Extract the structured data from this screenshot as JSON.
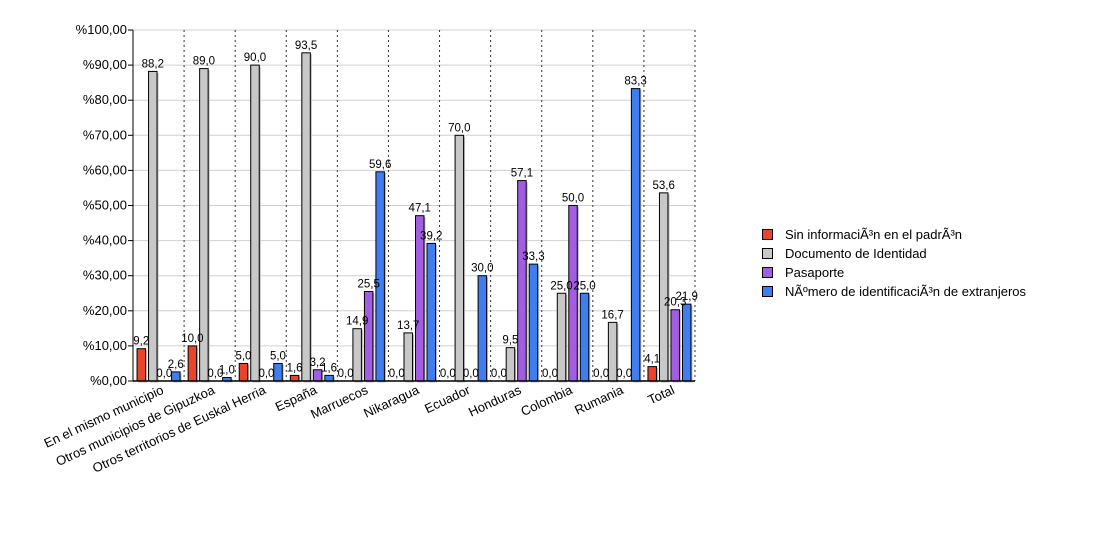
{
  "chart_data": {
    "type": "bar",
    "categories": [
      "En el mismo municipio",
      "Otros municipios de Gipuzkoa",
      "Otros territorios de Euskal Herria",
      "España",
      "Marruecos",
      "Nikaragua",
      "Ecuador",
      "Honduras",
      "Colombia",
      "Rumania",
      "Total"
    ],
    "series": [
      {
        "name": "Sin informaciÃ³n en el padrÃ³n",
        "color": "#e8452c",
        "values": [
          9.2,
          10.0,
          5.0,
          1.6,
          0.0,
          0.0,
          0.0,
          0.0,
          0.0,
          0.0,
          4.1
        ]
      },
      {
        "name": "Documento de Identidad",
        "color": "#c8c8c8",
        "values": [
          88.2,
          89.0,
          90.0,
          93.5,
          14.9,
          13.7,
          70.0,
          9.5,
          25.0,
          16.7,
          53.6
        ]
      },
      {
        "name": "Pasaporte",
        "color": "#a25ee0",
        "values": [
          0.0,
          0.0,
          0.0,
          3.2,
          25.5,
          47.1,
          0.0,
          57.1,
          50.0,
          0.0,
          20.3
        ]
      },
      {
        "name": "NÃºmero de identificaciÃ³n de extranjeros",
        "color": "#3f7ef0",
        "values": [
          2.6,
          1.0,
          5.0,
          1.6,
          59.6,
          39.2,
          30.0,
          33.3,
          25.0,
          83.3,
          21.9
        ]
      }
    ],
    "value_labels": [
      [
        "9,2",
        "10,0",
        "5,0",
        "1,6",
        "0,0",
        "0,0",
        "0,0",
        "0,0",
        "0,0",
        "0,0",
        "4,1"
      ],
      [
        "88,2",
        "89,0",
        "90,0",
        "93,5",
        "14,9",
        "13,7",
        "70,0",
        "9,5",
        "25,0",
        "16,7",
        "53,6"
      ],
      [
        "0,0",
        "0,0",
        "0,0",
        "3,2",
        "25,5",
        "47,1",
        "0,0",
        "57,1",
        "50,0",
        "0,0",
        "20,3"
      ],
      [
        "2,6",
        "1,0",
        "5,0",
        "1,6",
        "59,6",
        "39,2",
        "30,0",
        "33,3",
        "25,0",
        "83,3",
        "21,9"
      ]
    ],
    "y_ticks": [
      0,
      10,
      20,
      30,
      40,
      50,
      60,
      70,
      80,
      90,
      100
    ],
    "y_tick_labels": [
      "%0,00",
      "%10,00",
      "%20,00",
      "%30,00",
      "%40,00",
      "%50,00",
      "%60,00",
      "%70,00",
      "%80,00",
      "%90,00",
      "%100,00"
    ],
    "ylim": [
      0,
      100
    ],
    "grid": true,
    "legend_position": "right",
    "title": "",
    "xlabel": "",
    "ylabel": ""
  }
}
